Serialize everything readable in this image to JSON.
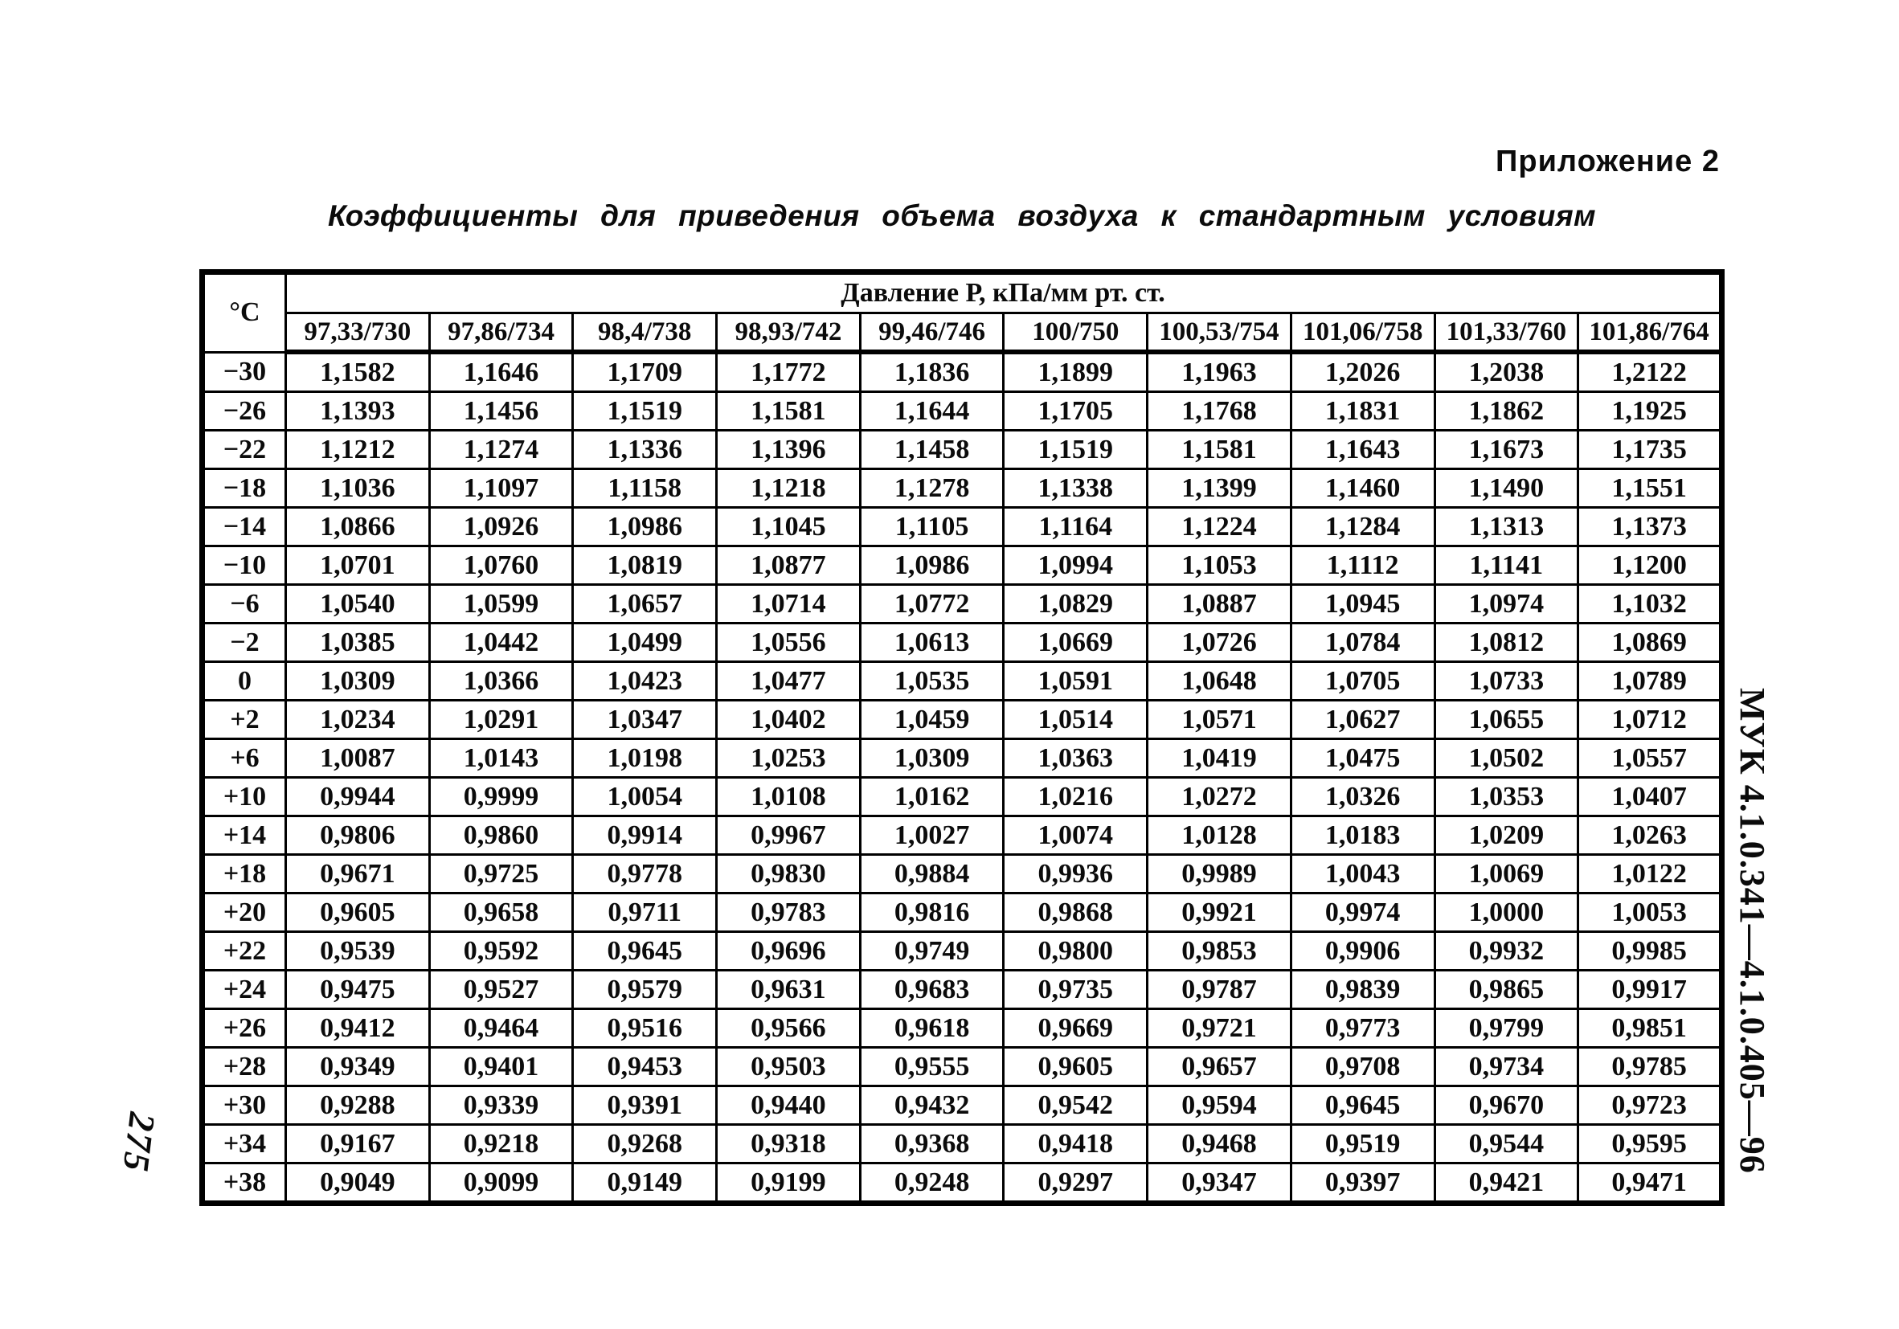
{
  "page": {
    "appendix_label": "Приложение 2",
    "title": "Коэффициенты для приведения объема воздуха к стандартным условиям",
    "side_label": "МУК 4.1.0.341—4.1.0.405—96",
    "page_number": "275"
  },
  "table": {
    "corner_header": "°C",
    "pressure_group_header": "Давление Р, кПа/мм рт. ст.",
    "column_headers": [
      "97,33/730",
      "97,86/734",
      "98,4/738",
      "98,93/742",
      "99,46/746",
      "100/750",
      "100,53/754",
      "101,06/758",
      "101,33/760",
      "101,86/764"
    ],
    "rows": [
      {
        "temp": "−30",
        "values": [
          "1,1582",
          "1,1646",
          "1,1709",
          "1,1772",
          "1,1836",
          "1,1899",
          "1,1963",
          "1,2026",
          "1,2038",
          "1,2122"
        ]
      },
      {
        "temp": "−26",
        "values": [
          "1,1393",
          "1,1456",
          "1,1519",
          "1,1581",
          "1,1644",
          "1,1705",
          "1,1768",
          "1,1831",
          "1,1862",
          "1,1925"
        ]
      },
      {
        "temp": "−22",
        "values": [
          "1,1212",
          "1,1274",
          "1,1336",
          "1,1396",
          "1,1458",
          "1,1519",
          "1,1581",
          "1,1643",
          "1,1673",
          "1,1735"
        ]
      },
      {
        "temp": "−18",
        "values": [
          "1,1036",
          "1,1097",
          "1,1158",
          "1,1218",
          "1,1278",
          "1,1338",
          "1,1399",
          "1,1460",
          "1,1490",
          "1,1551"
        ]
      },
      {
        "temp": "−14",
        "values": [
          "1,0866",
          "1,0926",
          "1,0986",
          "1,1045",
          "1,1105",
          "1,1164",
          "1,1224",
          "1,1284",
          "1,1313",
          "1,1373"
        ]
      },
      {
        "temp": "−10",
        "values": [
          "1,0701",
          "1,0760",
          "1,0819",
          "1,0877",
          "1,0986",
          "1,0994",
          "1,1053",
          "1,1112",
          "1,1141",
          "1,1200"
        ]
      },
      {
        "temp": "−6",
        "values": [
          "1,0540",
          "1,0599",
          "1,0657",
          "1,0714",
          "1,0772",
          "1,0829",
          "1,0887",
          "1,0945",
          "1,0974",
          "1,1032"
        ]
      },
      {
        "temp": "−2",
        "values": [
          "1,0385",
          "1,0442",
          "1,0499",
          "1,0556",
          "1,0613",
          "1,0669",
          "1,0726",
          "1,0784",
          "1,0812",
          "1,0869"
        ]
      },
      {
        "temp": "0",
        "values": [
          "1,0309",
          "1,0366",
          "1,0423",
          "1,0477",
          "1,0535",
          "1,0591",
          "1,0648",
          "1,0705",
          "1,0733",
          "1,0789"
        ]
      },
      {
        "temp": "+2",
        "values": [
          "1,0234",
          "1,0291",
          "1,0347",
          "1,0402",
          "1,0459",
          "1,0514",
          "1,0571",
          "1,0627",
          "1,0655",
          "1,0712"
        ]
      },
      {
        "temp": "+6",
        "values": [
          "1,0087",
          "1,0143",
          "1,0198",
          "1,0253",
          "1,0309",
          "1,0363",
          "1,0419",
          "1,0475",
          "1,0502",
          "1,0557"
        ]
      },
      {
        "temp": "+10",
        "values": [
          "0,9944",
          "0,9999",
          "1,0054",
          "1,0108",
          "1,0162",
          "1,0216",
          "1,0272",
          "1,0326",
          "1,0353",
          "1,0407"
        ]
      },
      {
        "temp": "+14",
        "values": [
          "0,9806",
          "0,9860",
          "0,9914",
          "0,9967",
          "1,0027",
          "1,0074",
          "1,0128",
          "1,0183",
          "1,0209",
          "1,0263"
        ]
      },
      {
        "temp": "+18",
        "values": [
          "0,9671",
          "0,9725",
          "0,9778",
          "0,9830",
          "0,9884",
          "0,9936",
          "0,9989",
          "1,0043",
          "1,0069",
          "1,0122"
        ]
      },
      {
        "temp": "+20",
        "values": [
          "0,9605",
          "0,9658",
          "0,9711",
          "0,9783",
          "0,9816",
          "0,9868",
          "0,9921",
          "0,9974",
          "1,0000",
          "1,0053"
        ]
      },
      {
        "temp": "+22",
        "values": [
          "0,9539",
          "0,9592",
          "0,9645",
          "0,9696",
          "0,9749",
          "0,9800",
          "0,9853",
          "0,9906",
          "0,9932",
          "0,9985"
        ]
      },
      {
        "temp": "+24",
        "values": [
          "0,9475",
          "0,9527",
          "0,9579",
          "0,9631",
          "0,9683",
          "0,9735",
          "0,9787",
          "0,9839",
          "0,9865",
          "0,9917"
        ]
      },
      {
        "temp": "+26",
        "values": [
          "0,9412",
          "0,9464",
          "0,9516",
          "0,9566",
          "0,9618",
          "0,9669",
          "0,9721",
          "0,9773",
          "0,9799",
          "0,9851"
        ]
      },
      {
        "temp": "+28",
        "values": [
          "0,9349",
          "0,9401",
          "0,9453",
          "0,9503",
          "0,9555",
          "0,9605",
          "0,9657",
          "0,9708",
          "0,9734",
          "0,9785"
        ]
      },
      {
        "temp": "+30",
        "values": [
          "0,9288",
          "0,9339",
          "0,9391",
          "0,9440",
          "0,9432",
          "0,9542",
          "0,9594",
          "0,9645",
          "0,9670",
          "0,9723"
        ]
      },
      {
        "temp": "+34",
        "values": [
          "0,9167",
          "0,9218",
          "0,9268",
          "0,9318",
          "0,9368",
          "0,9418",
          "0,9468",
          "0,9519",
          "0,9544",
          "0,9595"
        ]
      },
      {
        "temp": "+38",
        "values": [
          "0,9049",
          "0,9099",
          "0,9149",
          "0,9199",
          "0,9248",
          "0,9297",
          "0,9347",
          "0,9397",
          "0,9421",
          "0,9471"
        ]
      }
    ]
  }
}
